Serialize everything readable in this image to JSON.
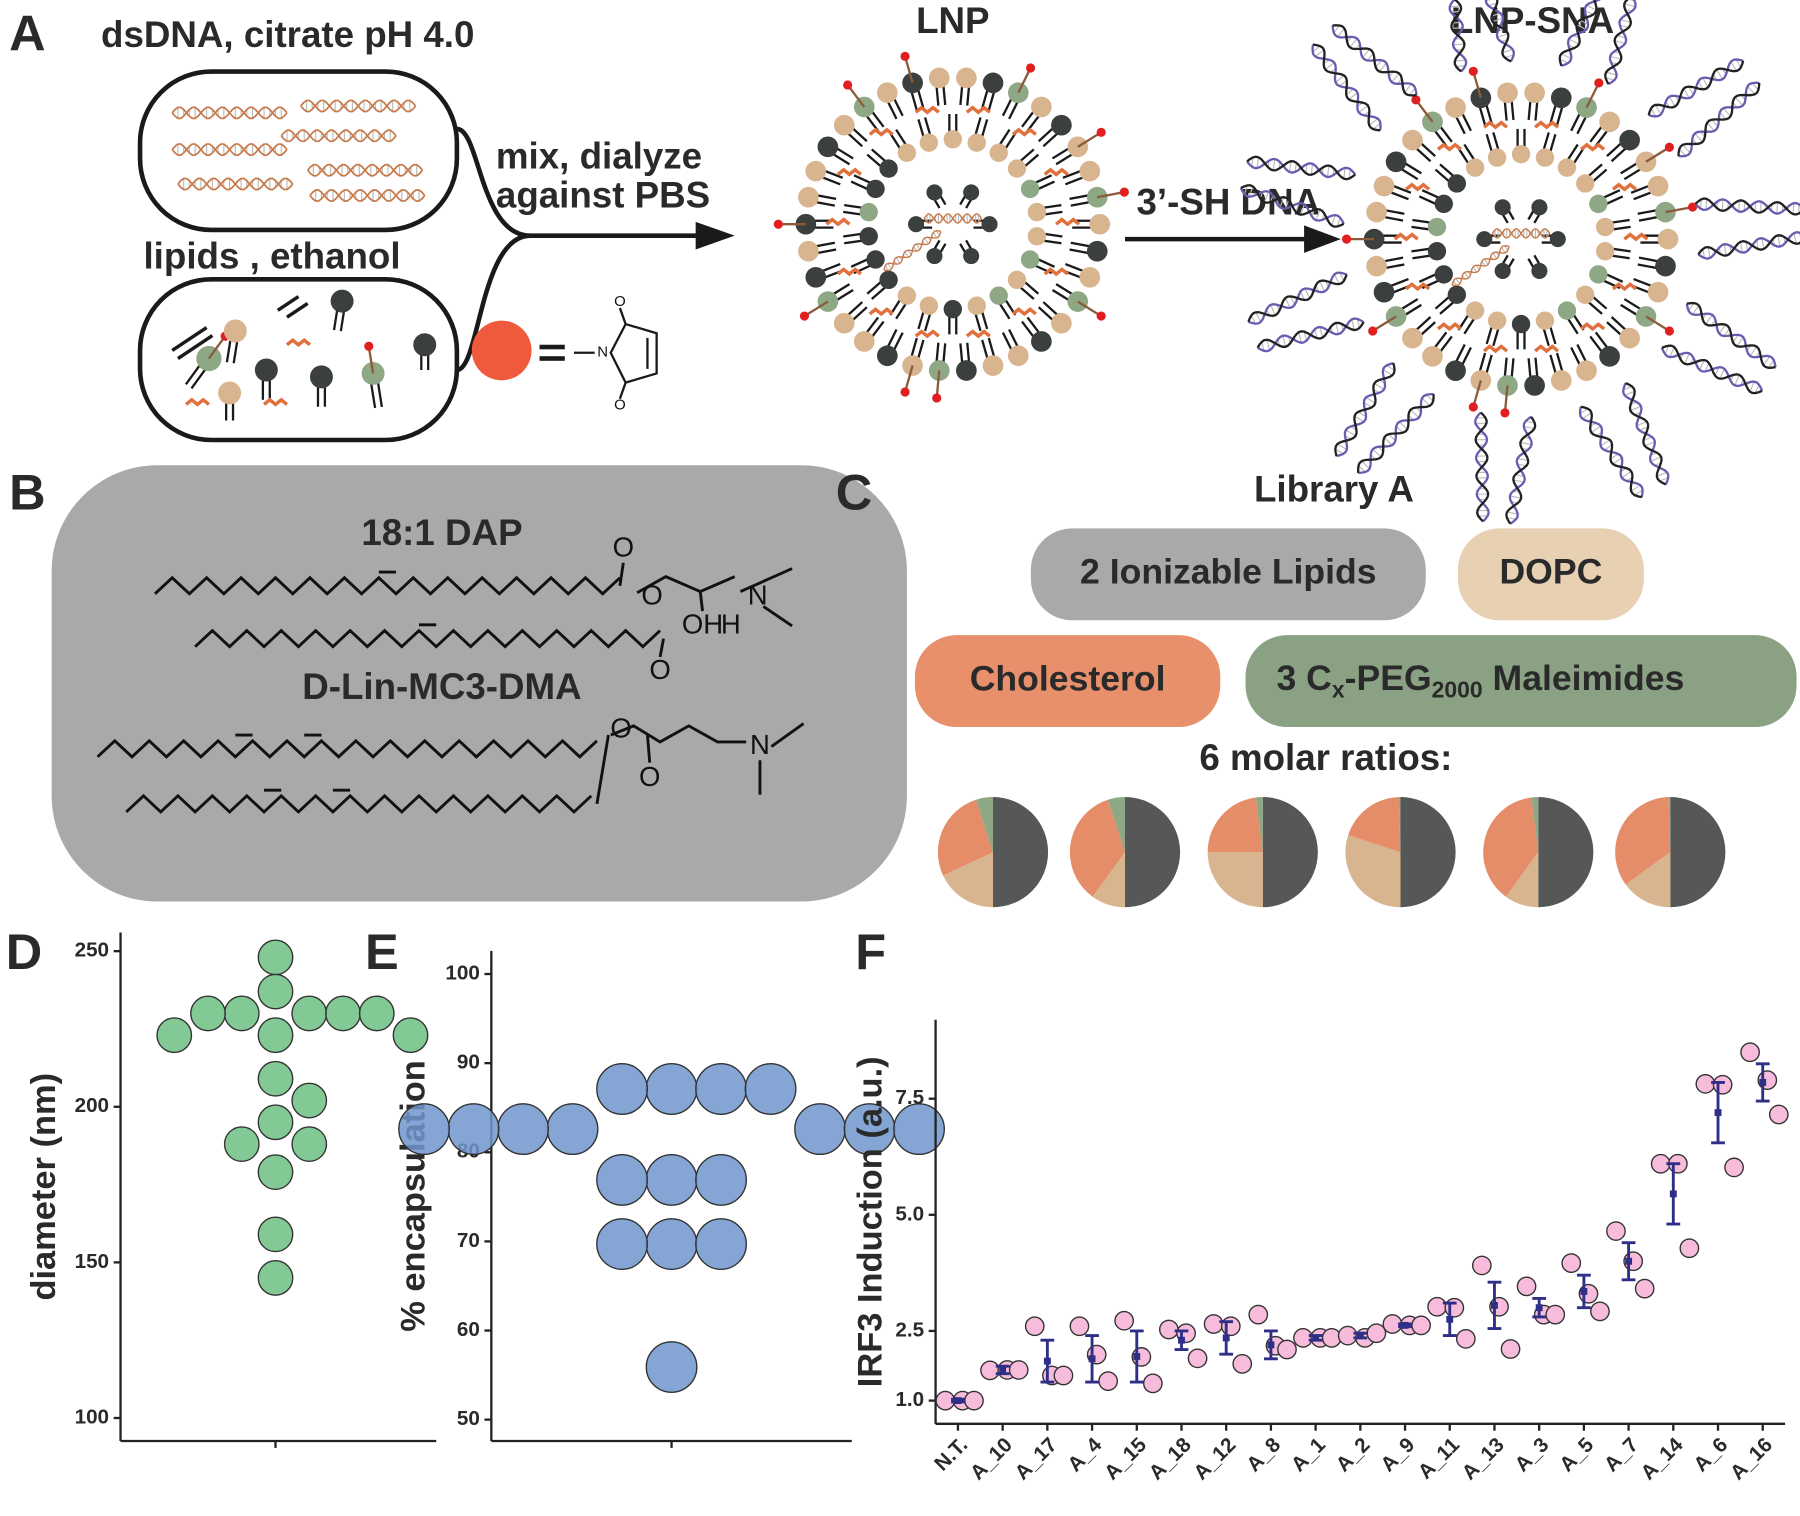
{
  "panel_a": {
    "label": "A",
    "dsdna": "dsDNA, citrate pH 4.0",
    "lipids": "lipids , ethanol",
    "mix_line1": "mix, dialyze",
    "mix_line2": "against PBS",
    "lnp": "LNP",
    "step2": "3’-SH DNA",
    "lnp_sna": "LNP-SNA",
    "maleimide_atoms": [
      "O",
      "N",
      "O"
    ]
  },
  "panel_b": {
    "label": "B",
    "lipid1": "18:1 DAP",
    "lipid1_atoms": [
      "O",
      "O",
      "N",
      "OH",
      "H",
      "O"
    ],
    "lipid2": "D-Lin-MC3-DMA",
    "lipid2_atoms": [
      "O",
      "O",
      "N"
    ]
  },
  "panel_c": {
    "label": "C",
    "title": "Library A",
    "ionizable": "2 Ionizable Lipids",
    "dopc": "DOPC",
    "cholesterol": "Cholesterol",
    "peg_parts": [
      "3 C",
      "x",
      "-PEG",
      "2000",
      " Maleimides"
    ],
    "ratios_title": "6 molar ratios:"
  },
  "chart_data": [
    {
      "type": "pie",
      "values": [
        50,
        18,
        27,
        5
      ],
      "colors": [
        "#555856",
        "#d8b58f",
        "#e58c68",
        "#8ea886"
      ]
    },
    {
      "type": "pie",
      "values": [
        50,
        10,
        35,
        5
      ],
      "colors": [
        "#555856",
        "#d8b58f",
        "#e58c68",
        "#8ea886"
      ]
    },
    {
      "type": "pie",
      "values": [
        50,
        25,
        23,
        2
      ],
      "colors": [
        "#555856",
        "#d8b58f",
        "#e58c68",
        "#8ea886"
      ]
    },
    {
      "type": "pie",
      "values": [
        50,
        30,
        19.5,
        0.5
      ],
      "colors": [
        "#555856",
        "#d8b58f",
        "#e58c68",
        "#8ea886"
      ]
    },
    {
      "type": "pie",
      "values": [
        50,
        10,
        38,
        2
      ],
      "colors": [
        "#555856",
        "#d8b58f",
        "#e58c68",
        "#8ea886"
      ]
    },
    {
      "type": "pie",
      "values": [
        50,
        15,
        34.5,
        0.5
      ],
      "colors": [
        "#555856",
        "#d8b58f",
        "#e58c68",
        "#8ea886"
      ]
    },
    {
      "type": "swarm",
      "panel": "D",
      "ylabel": "diameter (nm)",
      "values": [
        248,
        237,
        230,
        230,
        230,
        230,
        230,
        223,
        223,
        223,
        209,
        202,
        195,
        188,
        188,
        179,
        159,
        145
      ],
      "color": "#6cc083",
      "ylim": [
        92.6,
        256
      ],
      "yticks": [
        100,
        150,
        200,
        250
      ]
    },
    {
      "type": "swarm",
      "panel": "E",
      "ylabel": "% encapsulation",
      "values": [
        87.1,
        87.1,
        87.1,
        87.1,
        82.6,
        82.6,
        82.6,
        82.6,
        82.6,
        82.6,
        82.6,
        76.9,
        76.9,
        76.9,
        69.7,
        69.7,
        69.7,
        55.9
      ],
      "color": "#7096cc",
      "ylim": [
        47.6,
        102.6
      ],
      "yticks": [
        50,
        60,
        70,
        80,
        90,
        100
      ]
    },
    {
      "type": "dot-error",
      "panel": "F",
      "ylabel": "IRF3 Induction (a.u.)",
      "categories": [
        "N.T.",
        "A_10",
        "A_17",
        "A_4",
        "A_15",
        "A_18",
        "A_12",
        "A_8",
        "A_1",
        "A_2",
        "A_9",
        "A_11",
        "A_13",
        "A_3",
        "A_5",
        "A_7",
        "A_14",
        "A_6",
        "A_16"
      ],
      "values": [
        1.0,
        1.66,
        1.85,
        1.9,
        1.95,
        2.3,
        2.35,
        2.2,
        2.35,
        2.4,
        2.62,
        2.75,
        3.05,
        3.0,
        3.35,
        4.0,
        5.45,
        7.2,
        7.85
      ],
      "errors": [
        0.03,
        0.08,
        0.45,
        0.5,
        0.55,
        0.2,
        0.35,
        0.3,
        0.05,
        0.05,
        0.03,
        0.35,
        0.5,
        0.2,
        0.35,
        0.4,
        0.65,
        0.65,
        0.4
      ],
      "points": [
        [
          1.0,
          1.0,
          1.0
        ],
        [
          1.65,
          1.66,
          1.66
        ],
        [
          2.6,
          1.54,
          1.54
        ],
        [
          2.6,
          1.99,
          1.42
        ],
        [
          2.72,
          1.94,
          1.37
        ],
        [
          2.53,
          2.45,
          1.91
        ],
        [
          2.65,
          2.6,
          1.79
        ],
        [
          2.85,
          2.18,
          2.1
        ],
        [
          2.35,
          2.35,
          2.35
        ],
        [
          2.4,
          2.35,
          2.45
        ],
        [
          2.65,
          2.62,
          2.62
        ],
        [
          3.02,
          3.0,
          2.33
        ],
        [
          3.91,
          3.02,
          2.11
        ],
        [
          3.46,
          2.85,
          2.85
        ],
        [
          3.96,
          3.3,
          2.92
        ],
        [
          4.65,
          4.0,
          3.41
        ],
        [
          6.1,
          6.1,
          4.28
        ],
        [
          7.82,
          7.8,
          6.02
        ],
        [
          8.5,
          7.9,
          7.16
        ]
      ],
      "point_color": "#f7bcdb",
      "error_color": "#2e2f86",
      "ylim": [
        0.5,
        9.2
      ],
      "yticks": [
        {
          "value": 1,
          "label": "1.0"
        },
        2.5,
        {
          "value": 5,
          "label": "5.0"
        },
        7.5
      ]
    }
  ]
}
